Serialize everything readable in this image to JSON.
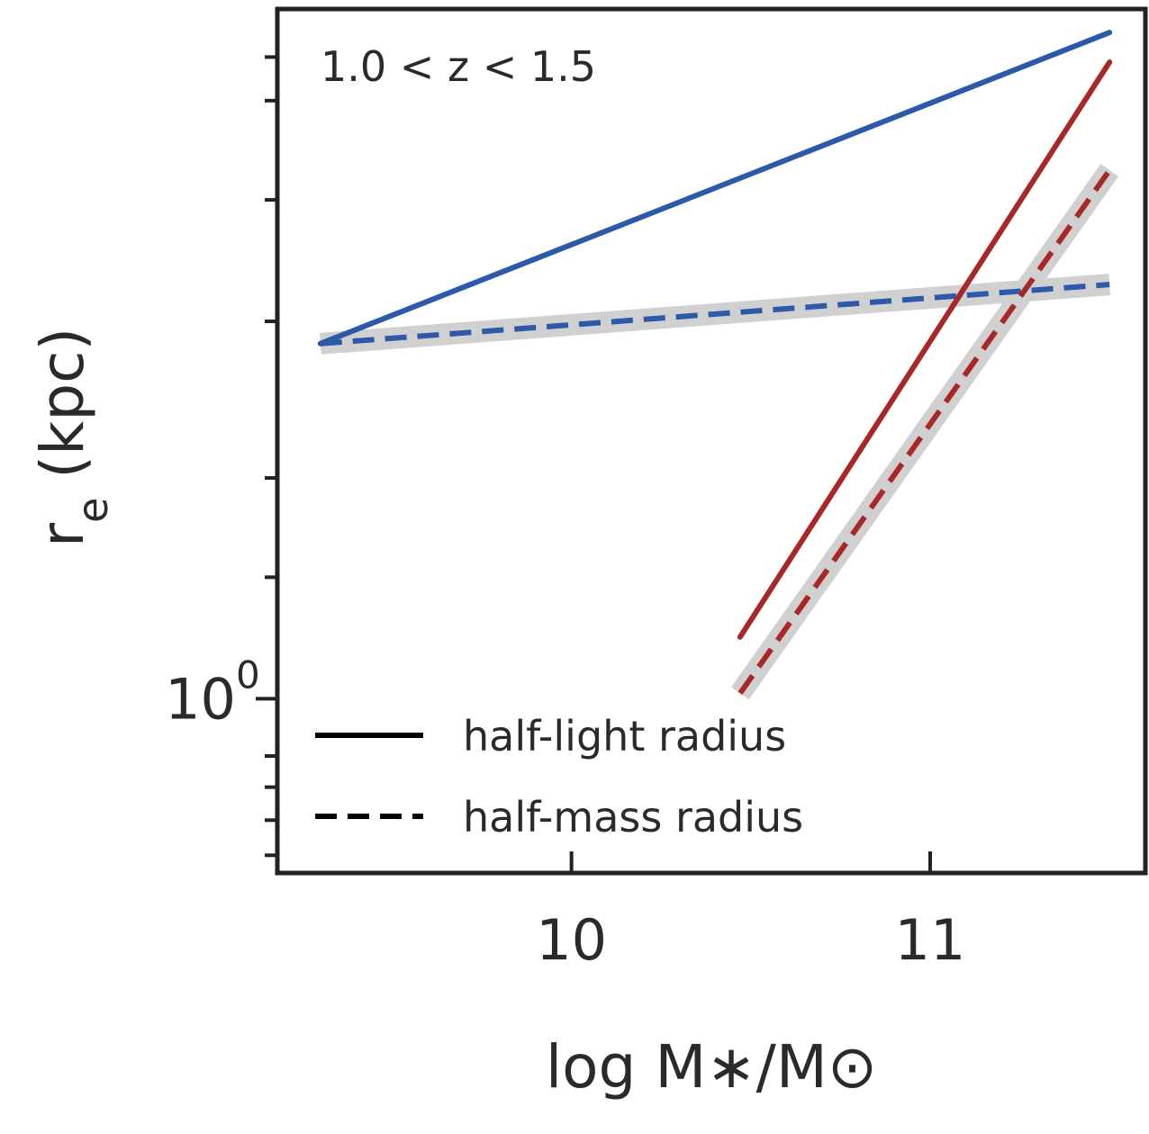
{
  "chart_data": {
    "type": "line",
    "annotation": "1.0 < z < 1.5",
    "xlabel": "log M∗/M⊙",
    "ylabel": "r",
    "ylabel_sub": "e",
    "ylabel_unit": " (kpc)",
    "y_scale": "log",
    "xlim": [
      9.18,
      11.6
    ],
    "ylim": [
      0.726,
      3.55
    ],
    "x_ticks": [
      {
        "value": 10,
        "label": "10"
      },
      {
        "value": 11,
        "label": "11"
      }
    ],
    "y_major_ticks": [
      {
        "value": 1.0,
        "base": "10",
        "exp": "0"
      }
    ],
    "y_minor_ticks": [
      0.8,
      0.9,
      2,
      3
    ],
    "y_minor_ticks_extra": [
      0.7,
      0.75,
      0.85,
      1.25,
      1.5,
      2.5,
      3.25
    ],
    "grid": false,
    "legend": {
      "placement": "lower-left",
      "entries": [
        {
          "label": "half-light radius",
          "style": "solid"
        },
        {
          "label": "half-mass radius",
          "style": "dashed"
        }
      ]
    },
    "series": [
      {
        "color": "#2c5aa8",
        "style": "solid",
        "band": false,
        "x": [
          9.3,
          11.5
        ],
        "y": [
          1.92,
          3.4
        ]
      },
      {
        "color": "#2c5aa8",
        "style": "dashed",
        "band": true,
        "x": [
          9.3,
          11.5
        ],
        "y": [
          1.92,
          2.14
        ]
      },
      {
        "color": "#a82828",
        "style": "solid",
        "band": false,
        "x": [
          10.47,
          11.5
        ],
        "y": [
          1.12,
          3.22
        ]
      },
      {
        "color": "#a82828",
        "style": "dashed",
        "band": true,
        "x": [
          10.47,
          11.5
        ],
        "y": [
          1.01,
          2.64
        ]
      }
    ],
    "band_color": "#d0d0d0",
    "axis_color": "#222222"
  }
}
